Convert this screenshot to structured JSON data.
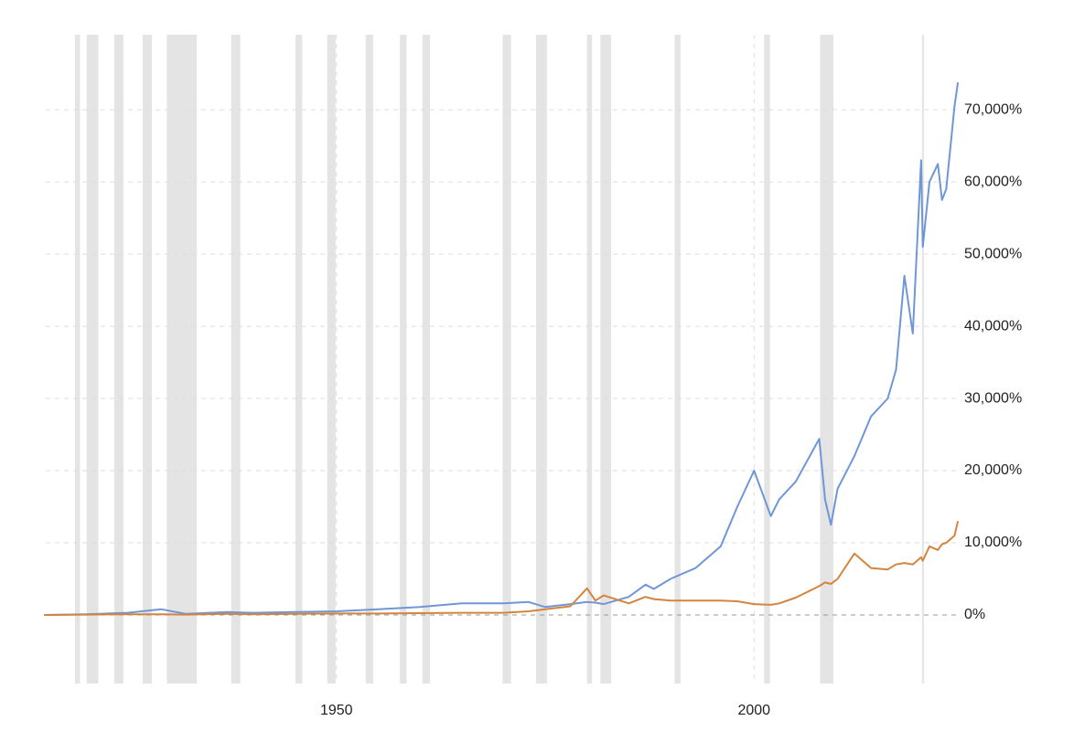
{
  "chart_data": {
    "type": "line",
    "x": [
      1915,
      1920,
      1925,
      1929,
      1932,
      1937,
      1940,
      1945,
      1950,
      1955,
      1960,
      1965,
      1970,
      1973,
      1975,
      1978,
      1980,
      1981,
      1982,
      1985,
      1987,
      1988,
      1990,
      1993,
      1996,
      1998,
      2000,
      2002,
      2003,
      2005,
      2007.8,
      2008.5,
      2009.2,
      2010,
      2012,
      2014,
      2016,
      2017,
      2018,
      2019,
      2020,
      2020.2,
      2021,
      2022,
      2022.5,
      2023,
      2024,
      2024.4
    ],
    "series": [
      {
        "color": "#6f96d6",
        "values": [
          0,
          100,
          300,
          800,
          150,
          400,
          300,
          400,
          500,
          800,
          1100,
          1600,
          1600,
          1800,
          1100,
          1500,
          1800,
          1700,
          1500,
          2500,
          4200,
          3600,
          5000,
          6500,
          9500,
          15000,
          20000,
          13700,
          16000,
          18500,
          24400,
          16000,
          12500,
          17500,
          22000,
          27500,
          30000,
          34000,
          47000,
          39000,
          63000,
          51000,
          60000,
          62500,
          57500,
          59000,
          70500,
          73800
        ]
      },
      {
        "color": "#d4843e",
        "values": [
          0,
          50,
          100,
          100,
          50,
          150,
          100,
          150,
          200,
          200,
          250,
          300,
          300,
          500,
          800,
          1200,
          3700,
          2000,
          2700,
          1600,
          2500,
          2200,
          2000,
          2000,
          2000,
          1900,
          1500,
          1400,
          1600,
          2400,
          4000,
          4500,
          4300,
          5000,
          8500,
          6500,
          6300,
          7000,
          7200,
          7000,
          8000,
          7500,
          9500,
          9000,
          9800,
          10000,
          11000,
          13000
        ]
      }
    ],
    "shaded_ranges": [
      [
        1918.7,
        1919.3
      ],
      [
        1920.1,
        1921.5
      ],
      [
        1923.4,
        1924.5
      ],
      [
        1926.8,
        1927.9
      ],
      [
        1929.7,
        1933.3
      ],
      [
        1937.4,
        1938.5
      ],
      [
        1945.1,
        1945.9
      ],
      [
        1948.9,
        1949.9
      ],
      [
        1953.5,
        1954.4
      ],
      [
        1957.6,
        1958.4
      ],
      [
        1960.3,
        1961.2
      ],
      [
        1969.9,
        1970.9
      ],
      [
        1973.9,
        1975.2
      ],
      [
        1980.0,
        1980.6
      ],
      [
        1981.6,
        1982.9
      ],
      [
        1990.5,
        1991.2
      ],
      [
        2001.2,
        2001.9
      ],
      [
        2007.9,
        2009.5
      ],
      [
        2020.1,
        2020.3
      ]
    ],
    "xlim": [
      1915.2,
      2024.5
    ],
    "xticks": [
      1950,
      2000
    ],
    "ylim": [
      -9500,
      80400
    ],
    "yticks": [
      {
        "value": 0,
        "label": "0%"
      },
      {
        "value": 10000,
        "label": "10,000%"
      },
      {
        "value": 20000,
        "label": "20,000%"
      },
      {
        "value": 30000,
        "label": "30,000%"
      },
      {
        "value": 40000,
        "label": "40,000%"
      },
      {
        "value": 50000,
        "label": "50,000%"
      },
      {
        "value": 60000,
        "label": "60,000%"
      },
      {
        "value": 70000,
        "label": "70,000%"
      }
    ],
    "grid": true
  }
}
